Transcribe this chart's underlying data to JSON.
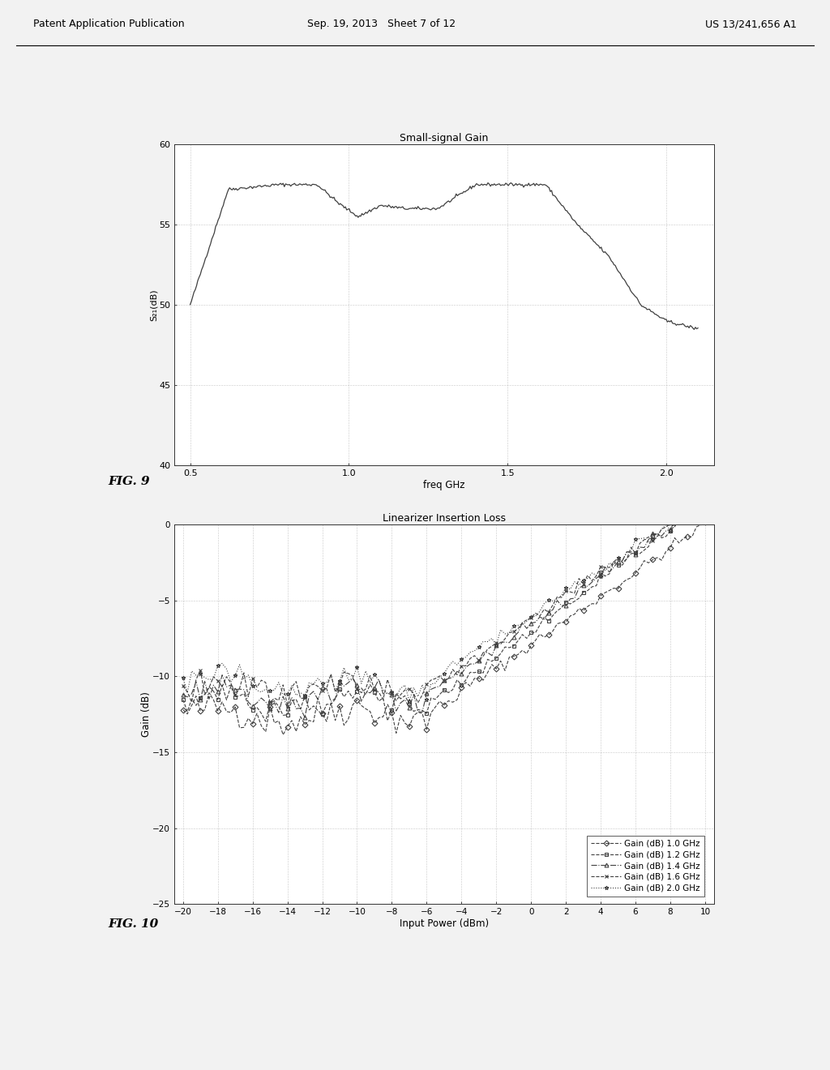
{
  "fig9_title": "Small-signal Gain",
  "fig9_xlabel": "freq GHz",
  "fig9_ylabel": "S₂₁(dB)",
  "fig9_xlim": [
    0.45,
    2.15
  ],
  "fig9_ylim": [
    40,
    60
  ],
  "fig9_yticks": [
    40,
    45,
    50,
    55,
    60
  ],
  "fig9_xticks": [
    0.5,
    1.0,
    1.5,
    2.0
  ],
  "fig9_label": "FIG. 9",
  "fig10_title": "Linearizer Insertion Loss",
  "fig10_xlabel": "Input Power (dBm)",
  "fig10_ylabel": "Gain (dB)",
  "fig10_xlim": [
    -20.5,
    10.5
  ],
  "fig10_ylim": [
    -25,
    0
  ],
  "fig10_yticks": [
    0,
    -5,
    -10,
    -15,
    -20,
    -25
  ],
  "fig10_xticks": [
    -20,
    -18,
    -16,
    -14,
    -12,
    -10,
    -8,
    -6,
    -4,
    -2,
    0,
    2,
    4,
    6,
    8,
    10
  ],
  "fig10_label": "FIG. 10",
  "header_left": "Patent Application Publication",
  "header_center": "Sep. 19, 2013   Sheet 7 of 12",
  "header_right": "US 13/241,656 A1",
  "bg_color": "#e8e8e8",
  "paper_color": "#f0f0f0"
}
